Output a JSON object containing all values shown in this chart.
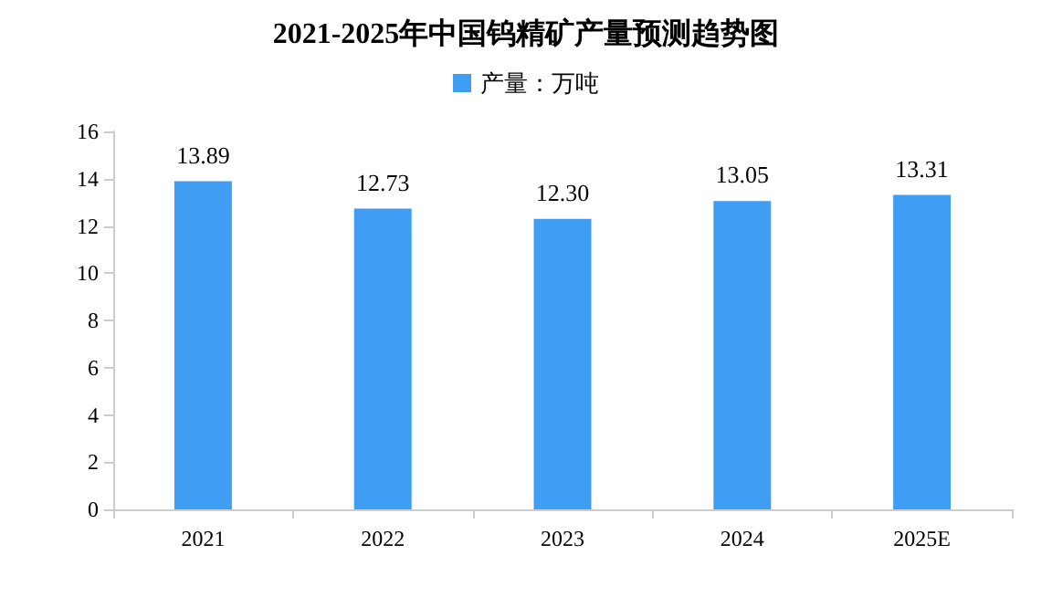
{
  "chart_data": {
    "type": "bar",
    "title": "2021-2025年中国钨精矿产量预测趋势图",
    "categories": [
      "2021",
      "2022",
      "2023",
      "2024",
      "2025E"
    ],
    "series": [
      {
        "name": "产量：万吨",
        "color": "#3f9ef4",
        "values": [
          13.89,
          12.73,
          12.3,
          13.05,
          13.31
        ],
        "value_labels": [
          "13.89",
          "12.73",
          "12.30",
          "13.05",
          "13.31"
        ]
      }
    ],
    "ylim": [
      0,
      16
    ],
    "yticks": [
      0,
      2,
      4,
      6,
      8,
      10,
      12,
      14,
      16
    ],
    "grid": false,
    "legend": "top"
  }
}
